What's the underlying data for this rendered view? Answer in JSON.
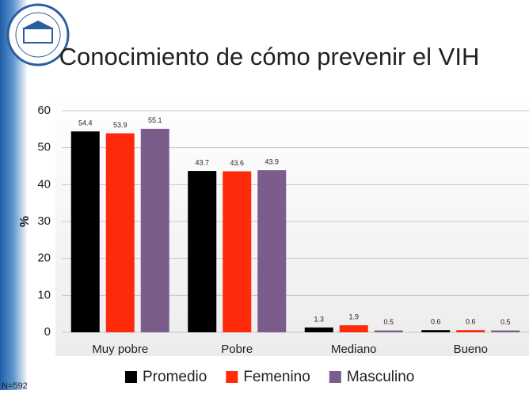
{
  "chart_data": {
    "type": "bar",
    "title": "Conocimiento de cómo prevenir el VIH",
    "y_label": "%",
    "footnote": "N=592",
    "categories": [
      "Muy pobre",
      "Pobre",
      "Mediano",
      "Bueno"
    ],
    "series": [
      {
        "name": "Promedio",
        "color": "#000000",
        "values": [
          54.4,
          43.7,
          1.3,
          0.6
        ]
      },
      {
        "name": "Femenino",
        "color": "#ff2a0a",
        "values": [
          53.9,
          43.6,
          1.9,
          0.6
        ]
      },
      {
        "name": "Masculino",
        "color": "#7b5d8c",
        "values": [
          55.1,
          43.9,
          0.5,
          0.5
        ]
      }
    ],
    "ylim": [
      0,
      60
    ],
    "yticks": [
      0,
      10,
      20,
      30,
      40,
      50,
      60
    ],
    "grid": true
  }
}
